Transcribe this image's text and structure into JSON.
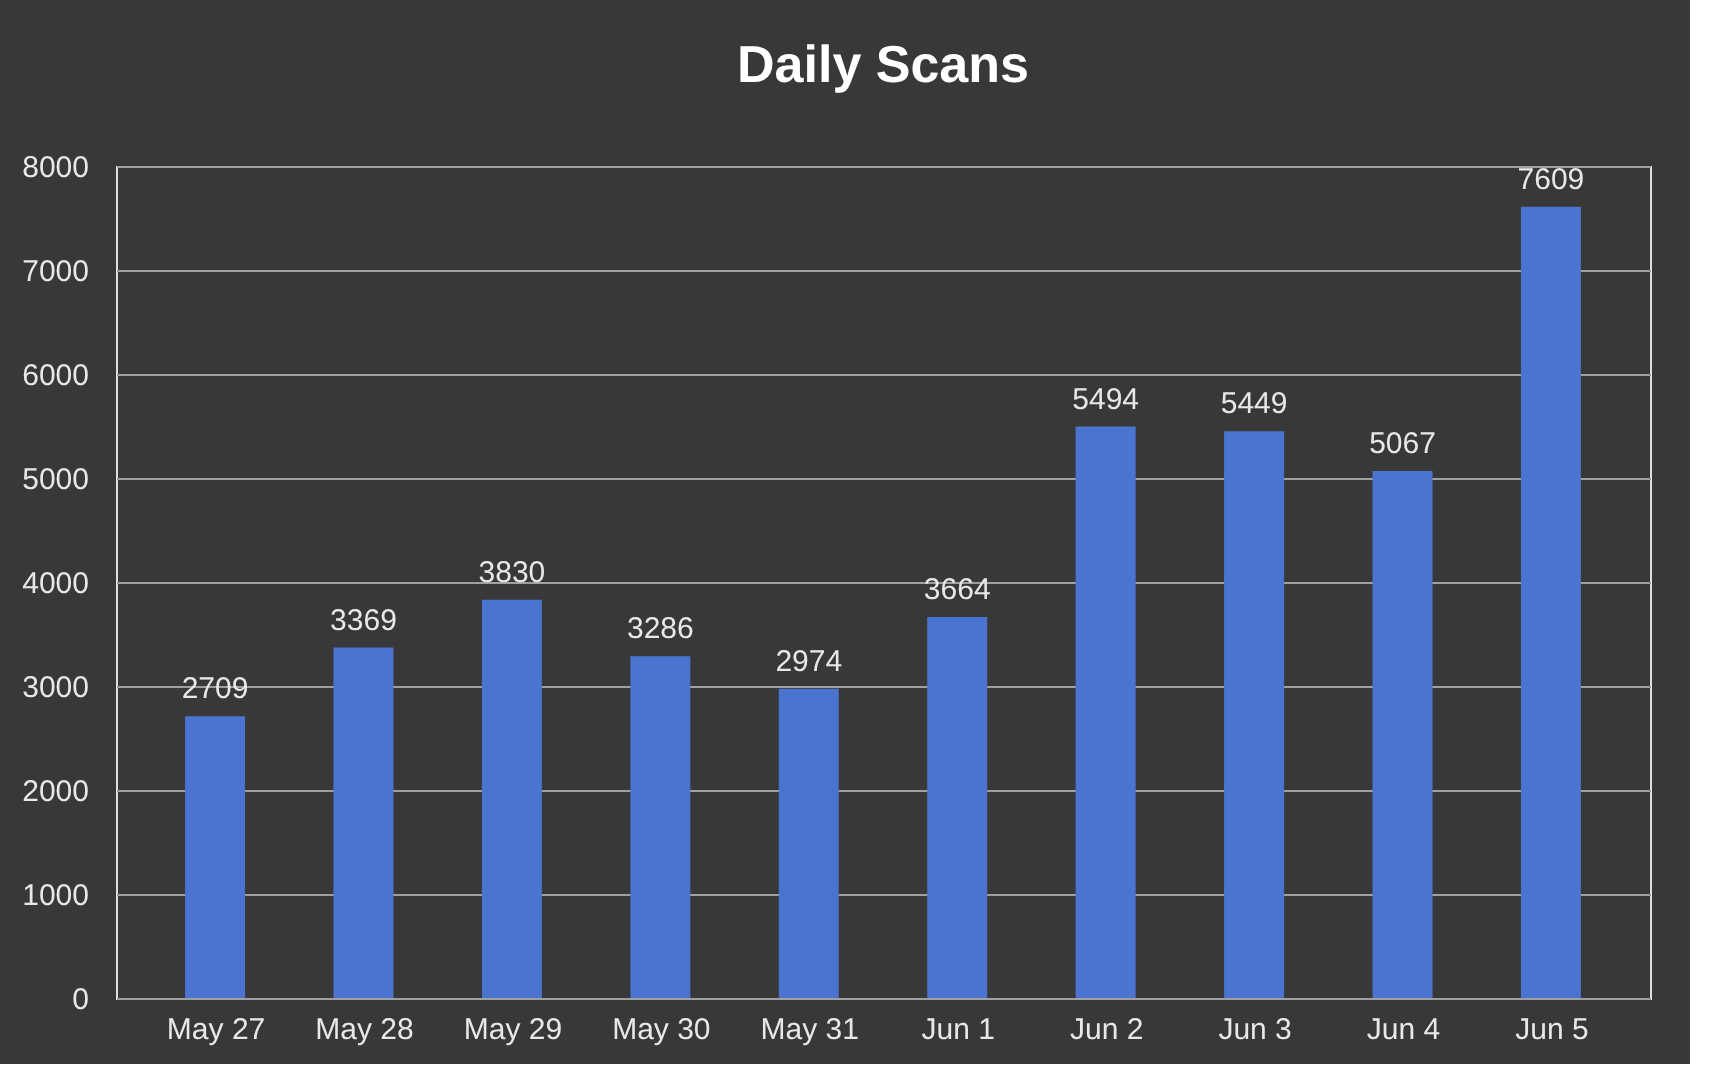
{
  "chart_data": {
    "type": "bar",
    "title": "Daily Scans",
    "categories": [
      "May 27",
      "May 28",
      "May 29",
      "May 30",
      "May 31",
      "Jun 1",
      "Jun 2",
      "Jun 3",
      "Jun 4",
      "Jun 5"
    ],
    "values": [
      2709,
      3369,
      3830,
      3286,
      2974,
      3664,
      5494,
      5449,
      5067,
      7609
    ],
    "color": "#4a74d0",
    "ylim": [
      0,
      8000
    ],
    "yticks": [
      0,
      1000,
      2000,
      3000,
      4000,
      5000,
      6000,
      7000,
      8000
    ],
    "grid": "y",
    "data_labels": true
  }
}
